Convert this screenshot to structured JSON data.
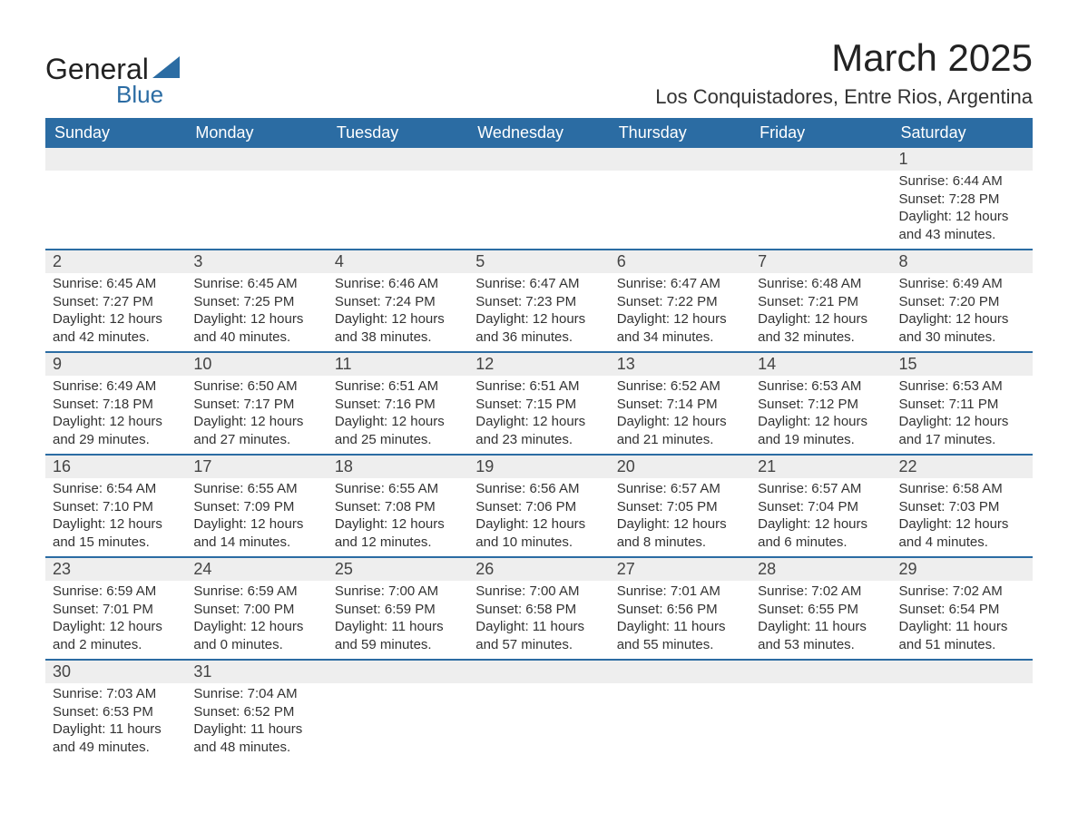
{
  "logo": {
    "text1": "General",
    "text2": "Blue",
    "color_general": "#222222",
    "color_blue": "#2b6ca3",
    "triangle_color": "#2b6ca3"
  },
  "header": {
    "month_title": "March 2025",
    "location": "Los Conquistadores, Entre Rios, Argentina"
  },
  "colors": {
    "header_bg": "#2b6ca3",
    "header_text": "#ffffff",
    "daynum_bg": "#eeeeee",
    "row_divider": "#2b6ca3",
    "body_text": "#333333"
  },
  "weekdays": [
    "Sunday",
    "Monday",
    "Tuesday",
    "Wednesday",
    "Thursday",
    "Friday",
    "Saturday"
  ],
  "weeks": [
    [
      null,
      null,
      null,
      null,
      null,
      null,
      {
        "n": "1",
        "sr": "Sunrise: 6:44 AM",
        "ss": "Sunset: 7:28 PM",
        "d1": "Daylight: 12 hours",
        "d2": "and 43 minutes."
      }
    ],
    [
      {
        "n": "2",
        "sr": "Sunrise: 6:45 AM",
        "ss": "Sunset: 7:27 PM",
        "d1": "Daylight: 12 hours",
        "d2": "and 42 minutes."
      },
      {
        "n": "3",
        "sr": "Sunrise: 6:45 AM",
        "ss": "Sunset: 7:25 PM",
        "d1": "Daylight: 12 hours",
        "d2": "and 40 minutes."
      },
      {
        "n": "4",
        "sr": "Sunrise: 6:46 AM",
        "ss": "Sunset: 7:24 PM",
        "d1": "Daylight: 12 hours",
        "d2": "and 38 minutes."
      },
      {
        "n": "5",
        "sr": "Sunrise: 6:47 AM",
        "ss": "Sunset: 7:23 PM",
        "d1": "Daylight: 12 hours",
        "d2": "and 36 minutes."
      },
      {
        "n": "6",
        "sr": "Sunrise: 6:47 AM",
        "ss": "Sunset: 7:22 PM",
        "d1": "Daylight: 12 hours",
        "d2": "and 34 minutes."
      },
      {
        "n": "7",
        "sr": "Sunrise: 6:48 AM",
        "ss": "Sunset: 7:21 PM",
        "d1": "Daylight: 12 hours",
        "d2": "and 32 minutes."
      },
      {
        "n": "8",
        "sr": "Sunrise: 6:49 AM",
        "ss": "Sunset: 7:20 PM",
        "d1": "Daylight: 12 hours",
        "d2": "and 30 minutes."
      }
    ],
    [
      {
        "n": "9",
        "sr": "Sunrise: 6:49 AM",
        "ss": "Sunset: 7:18 PM",
        "d1": "Daylight: 12 hours",
        "d2": "and 29 minutes."
      },
      {
        "n": "10",
        "sr": "Sunrise: 6:50 AM",
        "ss": "Sunset: 7:17 PM",
        "d1": "Daylight: 12 hours",
        "d2": "and 27 minutes."
      },
      {
        "n": "11",
        "sr": "Sunrise: 6:51 AM",
        "ss": "Sunset: 7:16 PM",
        "d1": "Daylight: 12 hours",
        "d2": "and 25 minutes."
      },
      {
        "n": "12",
        "sr": "Sunrise: 6:51 AM",
        "ss": "Sunset: 7:15 PM",
        "d1": "Daylight: 12 hours",
        "d2": "and 23 minutes."
      },
      {
        "n": "13",
        "sr": "Sunrise: 6:52 AM",
        "ss": "Sunset: 7:14 PM",
        "d1": "Daylight: 12 hours",
        "d2": "and 21 minutes."
      },
      {
        "n": "14",
        "sr": "Sunrise: 6:53 AM",
        "ss": "Sunset: 7:12 PM",
        "d1": "Daylight: 12 hours",
        "d2": "and 19 minutes."
      },
      {
        "n": "15",
        "sr": "Sunrise: 6:53 AM",
        "ss": "Sunset: 7:11 PM",
        "d1": "Daylight: 12 hours",
        "d2": "and 17 minutes."
      }
    ],
    [
      {
        "n": "16",
        "sr": "Sunrise: 6:54 AM",
        "ss": "Sunset: 7:10 PM",
        "d1": "Daylight: 12 hours",
        "d2": "and 15 minutes."
      },
      {
        "n": "17",
        "sr": "Sunrise: 6:55 AM",
        "ss": "Sunset: 7:09 PM",
        "d1": "Daylight: 12 hours",
        "d2": "and 14 minutes."
      },
      {
        "n": "18",
        "sr": "Sunrise: 6:55 AM",
        "ss": "Sunset: 7:08 PM",
        "d1": "Daylight: 12 hours",
        "d2": "and 12 minutes."
      },
      {
        "n": "19",
        "sr": "Sunrise: 6:56 AM",
        "ss": "Sunset: 7:06 PM",
        "d1": "Daylight: 12 hours",
        "d2": "and 10 minutes."
      },
      {
        "n": "20",
        "sr": "Sunrise: 6:57 AM",
        "ss": "Sunset: 7:05 PM",
        "d1": "Daylight: 12 hours",
        "d2": "and 8 minutes."
      },
      {
        "n": "21",
        "sr": "Sunrise: 6:57 AM",
        "ss": "Sunset: 7:04 PM",
        "d1": "Daylight: 12 hours",
        "d2": "and 6 minutes."
      },
      {
        "n": "22",
        "sr": "Sunrise: 6:58 AM",
        "ss": "Sunset: 7:03 PM",
        "d1": "Daylight: 12 hours",
        "d2": "and 4 minutes."
      }
    ],
    [
      {
        "n": "23",
        "sr": "Sunrise: 6:59 AM",
        "ss": "Sunset: 7:01 PM",
        "d1": "Daylight: 12 hours",
        "d2": "and 2 minutes."
      },
      {
        "n": "24",
        "sr": "Sunrise: 6:59 AM",
        "ss": "Sunset: 7:00 PM",
        "d1": "Daylight: 12 hours",
        "d2": "and 0 minutes."
      },
      {
        "n": "25",
        "sr": "Sunrise: 7:00 AM",
        "ss": "Sunset: 6:59 PM",
        "d1": "Daylight: 11 hours",
        "d2": "and 59 minutes."
      },
      {
        "n": "26",
        "sr": "Sunrise: 7:00 AM",
        "ss": "Sunset: 6:58 PM",
        "d1": "Daylight: 11 hours",
        "d2": "and 57 minutes."
      },
      {
        "n": "27",
        "sr": "Sunrise: 7:01 AM",
        "ss": "Sunset: 6:56 PM",
        "d1": "Daylight: 11 hours",
        "d2": "and 55 minutes."
      },
      {
        "n": "28",
        "sr": "Sunrise: 7:02 AM",
        "ss": "Sunset: 6:55 PM",
        "d1": "Daylight: 11 hours",
        "d2": "and 53 minutes."
      },
      {
        "n": "29",
        "sr": "Sunrise: 7:02 AM",
        "ss": "Sunset: 6:54 PM",
        "d1": "Daylight: 11 hours",
        "d2": "and 51 minutes."
      }
    ],
    [
      {
        "n": "30",
        "sr": "Sunrise: 7:03 AM",
        "ss": "Sunset: 6:53 PM",
        "d1": "Daylight: 11 hours",
        "d2": "and 49 minutes."
      },
      {
        "n": "31",
        "sr": "Sunrise: 7:04 AM",
        "ss": "Sunset: 6:52 PM",
        "d1": "Daylight: 11 hours",
        "d2": "and 48 minutes."
      },
      null,
      null,
      null,
      null,
      null
    ]
  ]
}
